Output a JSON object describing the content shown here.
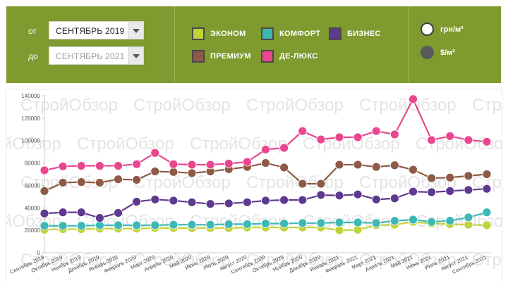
{
  "filters": {
    "from_label": "от",
    "from_value": "СЕНТЯБРЬ 2019",
    "to_label": "до",
    "to_value": "СЕНТЯБРЬ 2021"
  },
  "legend": [
    {
      "key": "econom",
      "label": "ЭКОНОМ",
      "color": "#c2d339"
    },
    {
      "key": "comfort",
      "label": "КОМФОРТ",
      "color": "#3db8b5"
    },
    {
      "key": "business",
      "label": "БИЗНЕС",
      "color": "#5e3990"
    },
    {
      "key": "premium",
      "label": "ПРЕМИУМ",
      "color": "#8d5a45"
    },
    {
      "key": "delux",
      "label": "ДЕ-ЛЮКС",
      "color": "#e9468f"
    }
  ],
  "currency": {
    "uah_label": "грн/м²",
    "usd_label": "$/м²",
    "selected": "uah"
  },
  "watermark": "СтройОбзор",
  "chart_data": {
    "type": "line",
    "ylim": [
      0,
      140000
    ],
    "yticks": [
      0,
      20000,
      40000,
      60000,
      80000,
      100000,
      120000,
      140000
    ],
    "grid": false,
    "legend": "top",
    "categories": [
      "Сентябрь 2019",
      "Октябрь 2019",
      "Ноябрь 2019",
      "Декабрь 2019",
      "Январь 2020",
      "Февраль 2020",
      "Март 2020",
      "Апрель 2020",
      "Май 2020",
      "Июнь 2020",
      "Июль 2020",
      "Август 2020",
      "Сентябрь 2020",
      "Октябрь 2020",
      "Ноябрь 2020",
      "Декабрь 2020",
      "Январь 2021",
      "Февраль 2021",
      "Март 2021",
      "Апрель 2021",
      "Май 2021",
      "Июнь 2021",
      "Июль 2021",
      "Август 2021",
      "Сентябрь 2021"
    ],
    "series": [
      {
        "name": "ЭКОНОМ",
        "color": "#c2d339",
        "values": [
          20500,
          21000,
          21000,
          21500,
          21500,
          21500,
          22000,
          22000,
          22000,
          22000,
          22000,
          22500,
          22500,
          22500,
          22500,
          22500,
          20000,
          20500,
          24500,
          25000,
          27500,
          26000,
          25500,
          25000,
          24500
        ]
      },
      {
        "name": "КОМФОРТ",
        "color": "#3db8b5",
        "values": [
          24000,
          24000,
          24000,
          24500,
          24500,
          24500,
          24500,
          25000,
          25000,
          25000,
          25500,
          25500,
          26000,
          26000,
          26500,
          26500,
          27000,
          27000,
          26500,
          28500,
          29500,
          27500,
          28500,
          31500,
          36000
        ]
      },
      {
        "name": "БИЗНЕС",
        "color": "#5e3990",
        "values": [
          35000,
          36000,
          36000,
          31000,
          35500,
          45500,
          47500,
          46500,
          45000,
          43500,
          44000,
          45000,
          46500,
          47000,
          47000,
          51500,
          51000,
          52000,
          47500,
          48500,
          54500,
          54000,
          55000,
          56000,
          57000
        ]
      },
      {
        "name": "ПРЕМИУМ",
        "color": "#8d5a45",
        "values": [
          55000,
          62500,
          63000,
          62500,
          65500,
          65000,
          72500,
          72000,
          71000,
          72500,
          74500,
          76500,
          80000,
          76000,
          61500,
          61500,
          78500,
          78500,
          76500,
          78000,
          74000,
          66500,
          67000,
          68500,
          70000
        ]
      },
      {
        "name": "ДЕ-ЛЮКС",
        "color": "#e9468f",
        "values": [
          73500,
          77000,
          77500,
          77500,
          77500,
          79000,
          89000,
          79000,
          78500,
          78500,
          79500,
          81000,
          92000,
          93500,
          108500,
          101000,
          103000,
          103000,
          108500,
          105500,
          137000,
          100500,
          104000,
          100500,
          99000
        ]
      }
    ]
  }
}
